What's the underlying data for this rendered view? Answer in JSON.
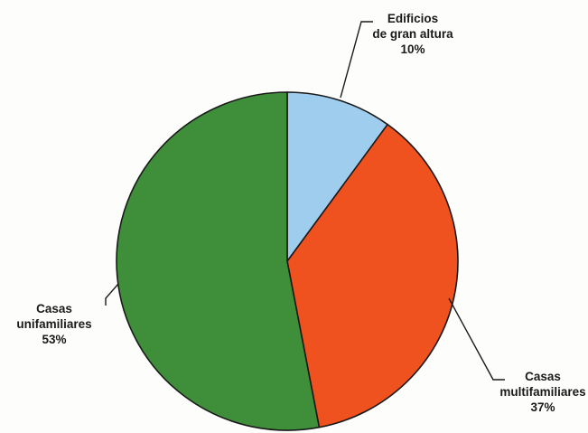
{
  "chart_data": {
    "type": "pie",
    "title": "",
    "slices": [
      {
        "label_lines": [
          "Edificios",
          "de gran altura"
        ],
        "percent_label": "10%",
        "value": 10,
        "color": "#9fcdee"
      },
      {
        "label_lines": [
          "Casas",
          "multifamiliares"
        ],
        "percent_label": "37%",
        "value": 37,
        "color": "#f0521f"
      },
      {
        "label_lines": [
          "Casas",
          "unifamiliares"
        ],
        "percent_label": "53%",
        "value": 53,
        "color": "#3f8f3a"
      }
    ],
    "start": "12 o'clock",
    "direction": "clockwise",
    "legend": "none",
    "outline_color": "#1a1a1a"
  }
}
